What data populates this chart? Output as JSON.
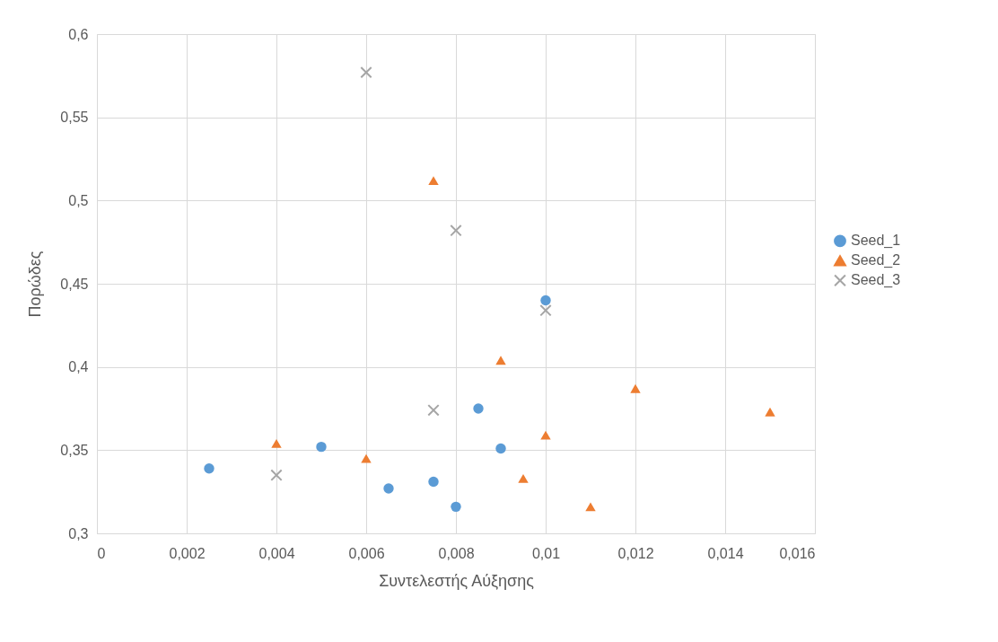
{
  "chart_data": {
    "type": "scatter",
    "xlabel": "Συντελεστής Αύξησης",
    "ylabel": "Πορώδες",
    "xlim": [
      0,
      0.016
    ],
    "ylim": [
      0.3,
      0.6
    ],
    "xticks": [
      0,
      {
        "value": 0.002,
        "label": "0,002"
      },
      {
        "value": 0.004,
        "label": "0,004"
      },
      {
        "value": 0.006,
        "label": "0,006"
      },
      {
        "value": 0.008,
        "label": "0,008"
      },
      {
        "value": 0.01,
        "label": "0,01"
      },
      {
        "value": 0.012,
        "label": "0,012"
      },
      {
        "value": 0.014,
        "label": "0,014"
      },
      {
        "value": 0.016,
        "label": "0,016"
      }
    ],
    "yticks": [
      {
        "value": 0.3,
        "label": "0,3"
      },
      {
        "value": 0.35,
        "label": "0,35"
      },
      {
        "value": 0.4,
        "label": "0,4"
      },
      {
        "value": 0.45,
        "label": "0,45"
      },
      {
        "value": 0.5,
        "label": "0,5"
      },
      {
        "value": 0.55,
        "label": "0,55"
      },
      {
        "value": 0.6,
        "label": "0,6"
      }
    ],
    "grid": true,
    "legend": "right",
    "series": [
      {
        "name": "Seed_1",
        "color": "#5b9bd5",
        "marker": "circle",
        "x": [
          0.0025,
          0.005,
          0.0065,
          0.0075,
          0.008,
          0.0085,
          0.009,
          0.01
        ],
        "values": [
          0.339,
          0.352,
          0.327,
          0.331,
          0.316,
          0.375,
          0.351,
          0.44
        ]
      },
      {
        "name": "Seed_2",
        "color": "#ed7d31",
        "marker": "triangle",
        "x": [
          0.004,
          0.006,
          0.0075,
          0.009,
          0.0095,
          0.01,
          0.011,
          0.012,
          0.015
        ],
        "values": [
          0.354,
          0.345,
          0.512,
          0.404,
          0.333,
          0.359,
          0.316,
          0.387,
          0.373
        ]
      },
      {
        "name": "Seed_3",
        "color": "#a5a5a5",
        "marker": "cross",
        "x": [
          0.004,
          0.006,
          0.0075,
          0.008,
          0.01
        ],
        "values": [
          0.335,
          0.577,
          0.374,
          0.482,
          0.434
        ]
      }
    ]
  }
}
